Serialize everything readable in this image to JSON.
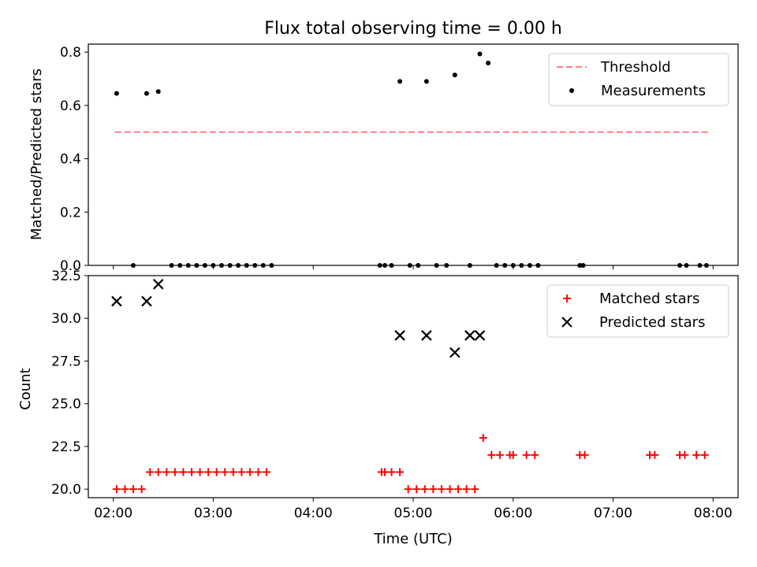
{
  "figure": {
    "title": "Flux total observing time = 0.00 h"
  },
  "chart_data": [
    {
      "type": "scatter",
      "panel": "top",
      "ylabel": "Matched/Predicted stars",
      "xlabel": "",
      "ylim": [
        0,
        0.83
      ],
      "yticks": [
        0.0,
        0.2,
        0.4,
        0.6,
        0.8
      ],
      "ytick_labels": [
        "0.0",
        "0.2",
        "0.4",
        "0.6",
        "0.8"
      ],
      "legend_position": "top-right",
      "series": [
        {
          "name": "Threshold",
          "kind": "line",
          "style": "dashed",
          "color": "#ff7f7f",
          "x": [
            "02:01",
            "07:57"
          ],
          "y": [
            0.5,
            0.5
          ]
        },
        {
          "name": "Measurements",
          "kind": "scatter",
          "marker": "dot",
          "color": "#000000",
          "x": [
            "02:02",
            "02:12",
            "02:20",
            "02:27",
            "02:35",
            "02:40",
            "02:45",
            "02:50",
            "02:55",
            "03:00",
            "03:05",
            "03:10",
            "03:15",
            "03:20",
            "03:25",
            "03:30",
            "03:35",
            "04:40",
            "04:43",
            "04:47",
            "04:52",
            "04:58",
            "05:03",
            "05:08",
            "05:14",
            "05:20",
            "05:25",
            "05:34",
            "05:40",
            "05:45",
            "05:50",
            "05:55",
            "06:00",
            "06:05",
            "06:10",
            "06:15",
            "06:40",
            "06:42",
            "07:40",
            "07:44",
            "07:52",
            "07:56"
          ],
          "y": [
            0.645,
            0.0,
            0.645,
            0.652,
            0.0,
            0.0,
            0.0,
            0.0,
            0.0,
            0.0,
            0.0,
            0.0,
            0.0,
            0.0,
            0.0,
            0.0,
            0.0,
            0.0,
            0.0,
            0.0,
            0.69,
            0.0,
            0.0,
            0.69,
            0.0,
            0.0,
            0.714,
            0.0,
            0.793,
            0.759,
            0.0,
            0.0,
            0.0,
            0.0,
            0.0,
            0.0,
            0.0,
            0.0,
            0.0,
            0.0,
            0.0,
            0.0
          ]
        }
      ]
    },
    {
      "type": "scatter",
      "panel": "bottom",
      "ylabel": "Count",
      "xlabel": "Time (UTC)",
      "ylim": [
        19.5,
        32.5
      ],
      "yticks": [
        20.0,
        22.5,
        25.0,
        27.5,
        30.0,
        32.5
      ],
      "ytick_labels": [
        "20.0",
        "22.5",
        "25.0",
        "27.5",
        "30.0",
        "32.5"
      ],
      "xlim": [
        "01:45",
        "08:15"
      ],
      "xticks": [
        "02:00",
        "03:00",
        "04:00",
        "05:00",
        "06:00",
        "07:00",
        "08:00"
      ],
      "legend_position": "top-right",
      "series": [
        {
          "name": "Matched stars",
          "marker": "plus",
          "color": "#ff0000",
          "x": [
            "02:02",
            "02:07",
            "02:12",
            "02:17",
            "02:22",
            "02:27",
            "02:32",
            "02:37",
            "02:42",
            "02:47",
            "02:52",
            "02:57",
            "03:02",
            "03:07",
            "03:12",
            "03:17",
            "03:22",
            "03:27",
            "03:32",
            "04:41",
            "04:43",
            "04:47",
            "04:52",
            "04:57",
            "05:02",
            "05:07",
            "05:12",
            "05:17",
            "05:22",
            "05:27",
            "05:32",
            "05:37",
            "05:42",
            "05:47",
            "05:52",
            "05:58",
            "06:00",
            "06:08",
            "06:13",
            "06:40",
            "06:43",
            "07:22",
            "07:25",
            "07:40",
            "07:43",
            "07:50",
            "07:55"
          ],
          "y": [
            20,
            20,
            20,
            20,
            21,
            21,
            21,
            21,
            21,
            21,
            21,
            21,
            21,
            21,
            21,
            21,
            21,
            21,
            21,
            21,
            21,
            21,
            21,
            20,
            20,
            20,
            20,
            20,
            20,
            20,
            20,
            20,
            23,
            22,
            22,
            22,
            22,
            22,
            22,
            22,
            22,
            22,
            22,
            22,
            22,
            22,
            22
          ]
        },
        {
          "name": "Predicted stars",
          "marker": "x",
          "color": "#000000",
          "x": [
            "02:02",
            "02:20",
            "02:27",
            "04:52",
            "05:08",
            "05:25",
            "05:34",
            "05:40"
          ],
          "y": [
            31,
            31,
            32,
            29,
            29,
            28,
            29,
            29
          ]
        }
      ]
    }
  ]
}
